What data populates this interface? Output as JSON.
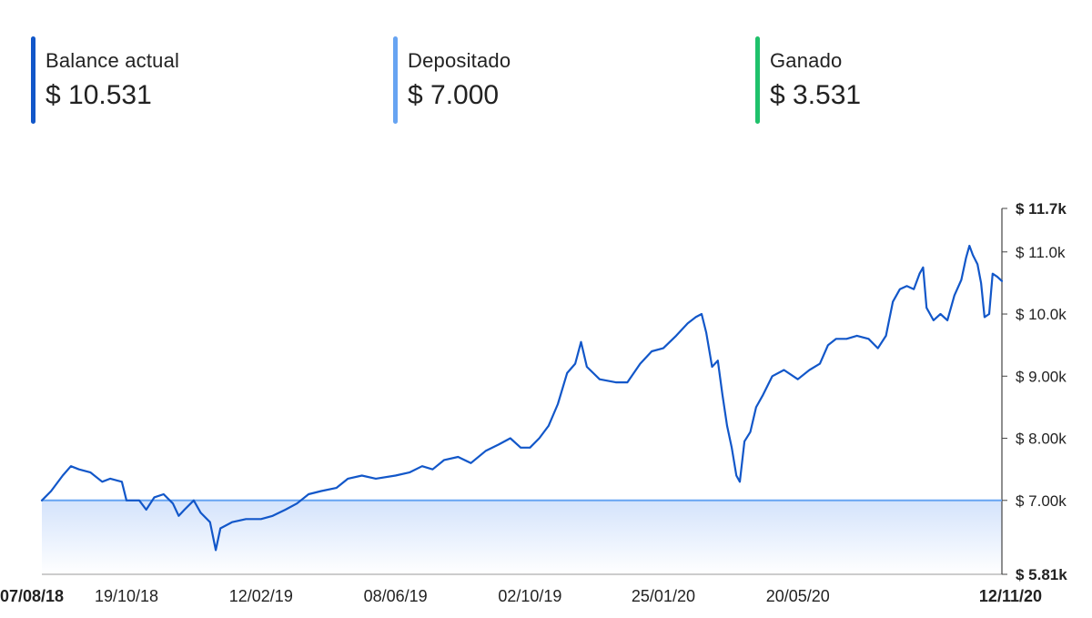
{
  "summary": [
    {
      "label": "Balance actual",
      "value": "$ 10.531",
      "color": "#1257c9"
    },
    {
      "label": "Depositado",
      "value": "$ 7.000",
      "color": "#67a4f2"
    },
    {
      "label": "Ganado",
      "value": "$ 3.531",
      "color": "#1fc16b"
    }
  ],
  "chart_data": {
    "type": "line",
    "title": "",
    "xlabel": "",
    "ylabel": "",
    "y_unit": "$",
    "ylim": [
      5810,
      11700
    ],
    "x_range": [
      "2018-08-07",
      "2020-11-12"
    ],
    "y_ticks": [
      {
        "value": 11700,
        "label": "$ 11.7k",
        "bold": true
      },
      {
        "value": 11000,
        "label": "$ 11.0k",
        "bold": false
      },
      {
        "value": 10000,
        "label": "$ 10.0k",
        "bold": false
      },
      {
        "value": 9000,
        "label": "$ 9.00k",
        "bold": false
      },
      {
        "value": 8000,
        "label": "$ 8.00k",
        "bold": false
      },
      {
        "value": 7000,
        "label": "$ 7.00k",
        "bold": false
      },
      {
        "value": 5810,
        "label": "$ 5.81k",
        "bold": true
      }
    ],
    "x_ticks": [
      {
        "date": "2018-08-07",
        "label": "07/08/18",
        "bold": true
      },
      {
        "date": "2018-10-19",
        "label": "19/10/18",
        "bold": false
      },
      {
        "date": "2019-02-12",
        "label": "12/02/19",
        "bold": false
      },
      {
        "date": "2019-06-08",
        "label": "08/06/19",
        "bold": false
      },
      {
        "date": "2019-10-02",
        "label": "02/10/19",
        "bold": false
      },
      {
        "date": "2020-01-25",
        "label": "25/01/20",
        "bold": false
      },
      {
        "date": "2020-05-20",
        "label": "20/05/20",
        "bold": false
      },
      {
        "date": "2020-11-12",
        "label": "12/11/20",
        "bold": true
      }
    ],
    "grid": false,
    "legend": "none",
    "series": [
      {
        "role": "balance",
        "color": "#1257c9",
        "points": [
          [
            "2018-08-07",
            7000
          ],
          [
            "2018-08-15",
            7150
          ],
          [
            "2018-08-25",
            7400
          ],
          [
            "2018-09-01",
            7550
          ],
          [
            "2018-09-08",
            7500
          ],
          [
            "2018-09-18",
            7450
          ],
          [
            "2018-09-28",
            7300
          ],
          [
            "2018-10-05",
            7350
          ],
          [
            "2018-10-15",
            7300
          ],
          [
            "2018-10-19",
            7000
          ],
          [
            "2018-10-30",
            7000
          ],
          [
            "2018-11-05",
            6850
          ],
          [
            "2018-11-12",
            7050
          ],
          [
            "2018-11-20",
            7100
          ],
          [
            "2018-11-28",
            6950
          ],
          [
            "2018-12-03",
            6750
          ],
          [
            "2018-12-08",
            6850
          ],
          [
            "2018-12-16",
            7000
          ],
          [
            "2018-12-22",
            6800
          ],
          [
            "2018-12-30",
            6650
          ],
          [
            "2019-01-04",
            6200
          ],
          [
            "2019-01-08",
            6550
          ],
          [
            "2019-01-18",
            6650
          ],
          [
            "2019-01-30",
            6700
          ],
          [
            "2019-02-12",
            6700
          ],
          [
            "2019-02-22",
            6750
          ],
          [
            "2019-03-05",
            6850
          ],
          [
            "2019-03-15",
            6950
          ],
          [
            "2019-03-25",
            7100
          ],
          [
            "2019-04-05",
            7150
          ],
          [
            "2019-04-18",
            7200
          ],
          [
            "2019-04-28",
            7350
          ],
          [
            "2019-05-10",
            7400
          ],
          [
            "2019-05-22",
            7350
          ],
          [
            "2019-06-08",
            7400
          ],
          [
            "2019-06-20",
            7450
          ],
          [
            "2019-07-01",
            7550
          ],
          [
            "2019-07-10",
            7500
          ],
          [
            "2019-07-20",
            7650
          ],
          [
            "2019-08-01",
            7700
          ],
          [
            "2019-08-12",
            7600
          ],
          [
            "2019-08-25",
            7800
          ],
          [
            "2019-09-05",
            7900
          ],
          [
            "2019-09-15",
            8000
          ],
          [
            "2019-09-24",
            7850
          ],
          [
            "2019-10-02",
            7850
          ],
          [
            "2019-10-10",
            8000
          ],
          [
            "2019-10-18",
            8200
          ],
          [
            "2019-10-26",
            8550
          ],
          [
            "2019-11-03",
            9050
          ],
          [
            "2019-11-10",
            9200
          ],
          [
            "2019-11-15",
            9550
          ],
          [
            "2019-11-20",
            9150
          ],
          [
            "2019-12-01",
            8950
          ],
          [
            "2019-12-15",
            8900
          ],
          [
            "2019-12-25",
            8900
          ],
          [
            "2020-01-05",
            9200
          ],
          [
            "2020-01-15",
            9400
          ],
          [
            "2020-01-25",
            9450
          ],
          [
            "2020-02-05",
            9650
          ],
          [
            "2020-02-15",
            9850
          ],
          [
            "2020-02-22",
            9950
          ],
          [
            "2020-02-27",
            10000
          ],
          [
            "2020-03-02",
            9700
          ],
          [
            "2020-03-07",
            9150
          ],
          [
            "2020-03-12",
            9250
          ],
          [
            "2020-03-16",
            8700
          ],
          [
            "2020-03-20",
            8200
          ],
          [
            "2020-03-24",
            7850
          ],
          [
            "2020-03-28",
            7400
          ],
          [
            "2020-03-31",
            7300
          ],
          [
            "2020-04-04",
            7950
          ],
          [
            "2020-04-09",
            8100
          ],
          [
            "2020-04-14",
            8500
          ],
          [
            "2020-04-20",
            8700
          ],
          [
            "2020-04-28",
            9000
          ],
          [
            "2020-05-08",
            9100
          ],
          [
            "2020-05-20",
            8950
          ],
          [
            "2020-05-30",
            9100
          ],
          [
            "2020-06-08",
            9200
          ],
          [
            "2020-06-15",
            9500
          ],
          [
            "2020-06-22",
            9600
          ],
          [
            "2020-07-01",
            9600
          ],
          [
            "2020-07-10",
            9650
          ],
          [
            "2020-07-20",
            9600
          ],
          [
            "2020-07-28",
            9450
          ],
          [
            "2020-08-04",
            9650
          ],
          [
            "2020-08-10",
            10200
          ],
          [
            "2020-08-16",
            10400
          ],
          [
            "2020-08-22",
            10450
          ],
          [
            "2020-08-28",
            10400
          ],
          [
            "2020-09-02",
            10650
          ],
          [
            "2020-09-05",
            10750
          ],
          [
            "2020-09-08",
            10100
          ],
          [
            "2020-09-14",
            9900
          ],
          [
            "2020-09-20",
            10000
          ],
          [
            "2020-09-26",
            9900
          ],
          [
            "2020-10-02",
            10300
          ],
          [
            "2020-10-08",
            10550
          ],
          [
            "2020-10-12",
            10900
          ],
          [
            "2020-10-15",
            11100
          ],
          [
            "2020-10-18",
            10950
          ],
          [
            "2020-10-22",
            10800
          ],
          [
            "2020-10-25",
            10500
          ],
          [
            "2020-10-28",
            9950
          ],
          [
            "2020-11-01",
            10000
          ],
          [
            "2020-11-04",
            10650
          ],
          [
            "2020-11-08",
            10600
          ],
          [
            "2020-11-12",
            10531
          ]
        ]
      },
      {
        "role": "deposited",
        "color": "#67a4f2",
        "points": [
          [
            "2018-08-07",
            7000
          ],
          [
            "2020-11-12",
            7000
          ]
        ]
      }
    ]
  }
}
